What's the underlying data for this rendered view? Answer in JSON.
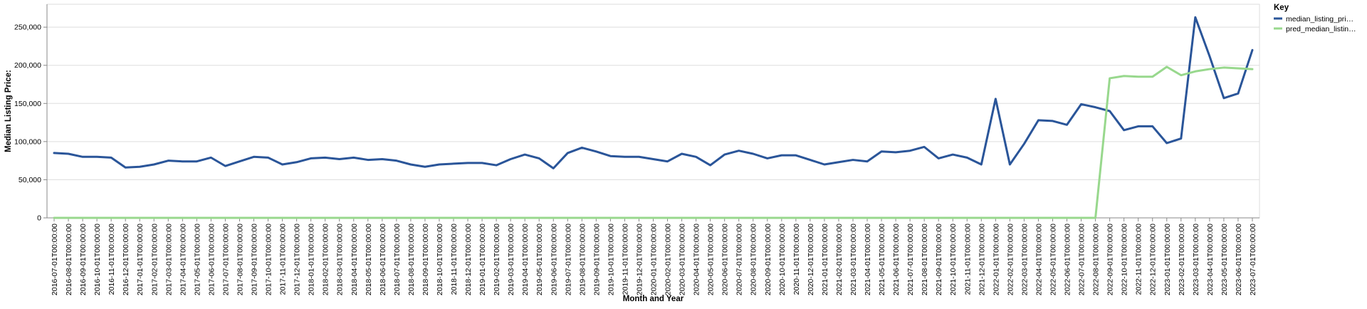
{
  "chart_data": {
    "type": "line",
    "xlabel": "Month and Year",
    "ylabel": "Median Listing Price:",
    "ylim": [
      0,
      280000
    ],
    "grid": true,
    "legend": {
      "title": "Key",
      "position": "top-right",
      "entries": [
        "median_listing_pri…",
        "pred_median_listin…"
      ]
    },
    "y_ticks": [
      {
        "value": 0,
        "label": "0"
      },
      {
        "value": 50000,
        "label": "50,000"
      },
      {
        "value": 100000,
        "label": "100,000"
      },
      {
        "value": 150000,
        "label": "150,000"
      },
      {
        "value": 200000,
        "label": "200,000"
      },
      {
        "value": 250000,
        "label": "250,000"
      }
    ],
    "x": [
      "2016-07-01T00:00:00",
      "2016-08-01T00:00:00",
      "2016-09-01T00:00:00",
      "2016-10-01T00:00:00",
      "2016-11-01T00:00:00",
      "2016-12-01T00:00:00",
      "2017-01-01T00:00:00",
      "2017-02-01T00:00:00",
      "2017-03-01T00:00:00",
      "2017-04-01T00:00:00",
      "2017-05-01T00:00:00",
      "2017-06-01T00:00:00",
      "2017-07-01T00:00:00",
      "2017-08-01T00:00:00",
      "2017-09-01T00:00:00",
      "2017-10-01T00:00:00",
      "2017-11-01T00:00:00",
      "2017-12-01T00:00:00",
      "2018-01-01T00:00:00",
      "2018-02-01T00:00:00",
      "2018-03-01T00:00:00",
      "2018-04-01T00:00:00",
      "2018-05-01T00:00:00",
      "2018-06-01T00:00:00",
      "2018-07-01T00:00:00",
      "2018-08-01T00:00:00",
      "2018-09-01T00:00:00",
      "2018-10-01T00:00:00",
      "2018-11-01T00:00:00",
      "2018-12-01T00:00:00",
      "2019-01-01T00:00:00",
      "2019-02-01T00:00:00",
      "2019-03-01T00:00:00",
      "2019-04-01T00:00:00",
      "2019-05-01T00:00:00",
      "2019-06-01T00:00:00",
      "2019-07-01T00:00:00",
      "2019-08-01T00:00:00",
      "2019-09-01T00:00:00",
      "2019-10-01T00:00:00",
      "2019-11-01T00:00:00",
      "2019-12-01T00:00:00",
      "2020-01-01T00:00:00",
      "2020-02-01T00:00:00",
      "2020-03-01T00:00:00",
      "2020-04-01T00:00:00",
      "2020-05-01T00:00:00",
      "2020-06-01T00:00:00",
      "2020-07-01T00:00:00",
      "2020-08-01T00:00:00",
      "2020-09-01T00:00:00",
      "2020-10-01T00:00:00",
      "2020-11-01T00:00:00",
      "2020-12-01T00:00:00",
      "2021-01-01T00:00:00",
      "2021-02-01T00:00:00",
      "2021-03-01T00:00:00",
      "2021-04-01T00:00:00",
      "2021-05-01T00:00:00",
      "2021-06-01T00:00:00",
      "2021-07-01T00:00:00",
      "2021-08-01T00:00:00",
      "2021-09-01T00:00:00",
      "2021-10-01T00:00:00",
      "2021-11-01T00:00:00",
      "2021-12-01T00:00:00",
      "2022-01-01T00:00:00",
      "2022-02-01T00:00:00",
      "2022-03-01T00:00:00",
      "2022-04-01T00:00:00",
      "2022-05-01T00:00:00",
      "2022-06-01T00:00:00",
      "2022-07-01T00:00:00",
      "2022-08-01T00:00:00",
      "2022-09-01T00:00:00",
      "2022-10-01T00:00:00",
      "2022-11-01T00:00:00",
      "2022-12-01T00:00:00",
      "2023-01-01T00:00:00",
      "2023-02-01T00:00:00",
      "2023-03-01T00:00:00",
      "2023-04-01T00:00:00",
      "2023-05-01T00:00:00",
      "2023-06-01T00:00:00",
      "2023-07-01T00:00:00"
    ],
    "series": [
      {
        "name": "median_listing_pri…",
        "color": "#2a5599",
        "values": [
          85000,
          84000,
          80000,
          80000,
          79000,
          66000,
          67000,
          70000,
          75000,
          74000,
          74000,
          79000,
          68000,
          74000,
          80000,
          79000,
          70000,
          73000,
          78000,
          79000,
          77000,
          79000,
          76000,
          77000,
          75000,
          70000,
          67000,
          70000,
          71000,
          72000,
          72000,
          69000,
          77000,
          83000,
          78000,
          65000,
          85000,
          92000,
          87000,
          81000,
          80000,
          80000,
          77000,
          74000,
          84000,
          80000,
          69000,
          83000,
          88000,
          84000,
          78000,
          82000,
          82000,
          76000,
          70000,
          73000,
          76000,
          74000,
          87000,
          86000,
          88000,
          93000,
          78000,
          83000,
          79000,
          70000,
          156000,
          70000,
          97000,
          128000,
          127000,
          122000,
          149000,
          145000,
          140000,
          115000,
          120000,
          120000,
          98000,
          104000,
          263000,
          212000,
          157000,
          163000,
          220000
        ]
      },
      {
        "name": "pred_median_listin…",
        "color": "#98d88d",
        "values": [
          0,
          0,
          0,
          0,
          0,
          0,
          0,
          0,
          0,
          0,
          0,
          0,
          0,
          0,
          0,
          0,
          0,
          0,
          0,
          0,
          0,
          0,
          0,
          0,
          0,
          0,
          0,
          0,
          0,
          0,
          0,
          0,
          0,
          0,
          0,
          0,
          0,
          0,
          0,
          0,
          0,
          0,
          0,
          0,
          0,
          0,
          0,
          0,
          0,
          0,
          0,
          0,
          0,
          0,
          0,
          0,
          0,
          0,
          0,
          0,
          0,
          0,
          0,
          0,
          0,
          0,
          0,
          0,
          0,
          0,
          0,
          0,
          0,
          0,
          183000,
          186000,
          185000,
          185000,
          198000,
          187000,
          192000,
          195000,
          197000,
          196000,
          195000
        ]
      }
    ]
  }
}
